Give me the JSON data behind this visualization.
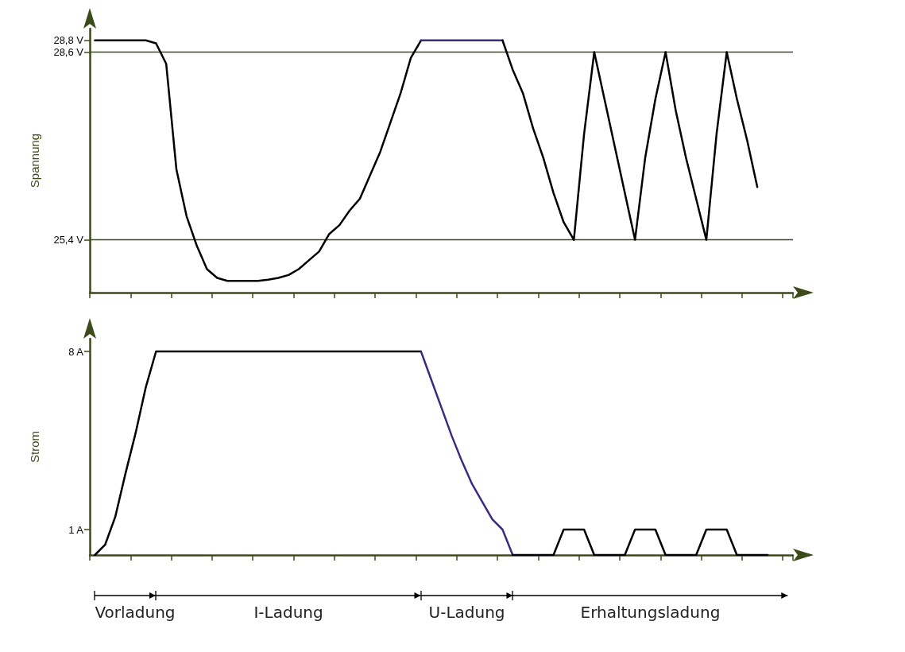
{
  "chart_data": [
    {
      "type": "line",
      "ylabel": "Spannung",
      "categories": [
        null,
        null,
        null,
        null,
        null,
        null,
        null,
        null,
        null,
        null,
        null,
        null,
        null,
        null,
        null,
        null,
        null,
        null,
        null,
        null,
        null,
        null,
        null,
        null,
        null,
        null,
        null,
        null,
        null,
        null,
        null,
        null,
        null,
        null,
        null,
        null,
        null,
        null,
        null,
        null,
        null,
        null,
        null,
        null,
        null,
        null,
        null,
        null,
        null,
        null,
        null,
        null,
        null,
        null,
        null,
        null,
        null,
        null,
        null,
        null,
        null,
        null,
        null,
        null,
        null,
        null,
        null,
        null,
        null
      ],
      "ylim": [
        24.5,
        29
      ],
      "yticks": [
        {
          "value": 25.4,
          "label": "25,4 V"
        },
        {
          "value": 28.6,
          "label": "28,6 V"
        },
        {
          "value": 28.8,
          "label": "28,8 V"
        }
      ],
      "tick_labels": "y",
      "marker": "none",
      "line_style": "solid",
      "ref_lines": [
        {
          "axis": "y",
          "value": 28.6,
          "color": "#3d4a1a"
        },
        {
          "axis": "y",
          "value": 25.4,
          "color": "#3d4a1a"
        }
      ],
      "series": [
        {
          "color": "#000000",
          "values": [
            28.8,
            28.8,
            28.8,
            28.8,
            28.8,
            28.8,
            28.75,
            28.4,
            26.6,
            25.8,
            25.3,
            24.9,
            24.75,
            24.7,
            24.7,
            24.7,
            24.7,
            24.72,
            24.75,
            24.8,
            24.9,
            25.05,
            25.2,
            25.5,
            25.65,
            25.9,
            26.1,
            26.5,
            26.9,
            27.4,
            27.9,
            28.5,
            28.8,
            null,
            null,
            null,
            null,
            null,
            null,
            null,
            null,
            null,
            null,
            null,
            null,
            null,
            null,
            null,
            null,
            null,
            null,
            null,
            null,
            null,
            null,
            null,
            null,
            null,
            null,
            null,
            null,
            null,
            null,
            null,
            null,
            null,
            null,
            null,
            null
          ]
        },
        {
          "color": "#3f2a80",
          "values": [
            null,
            null,
            null,
            null,
            null,
            null,
            null,
            null,
            null,
            null,
            null,
            null,
            null,
            null,
            null,
            null,
            null,
            null,
            null,
            null,
            null,
            null,
            null,
            null,
            null,
            null,
            null,
            null,
            null,
            null,
            null,
            null,
            28.8,
            28.8,
            28.8,
            28.8,
            28.8,
            28.8,
            28.8,
            28.8,
            28.8,
            null,
            null,
            null,
            null,
            null,
            null,
            null,
            null,
            null,
            null,
            null,
            null,
            null,
            null,
            null,
            null,
            null,
            null,
            null,
            null,
            null,
            null,
            null,
            null,
            null,
            null,
            null,
            null
          ]
        },
        {
          "color": "#000000",
          "values": [
            null,
            null,
            null,
            null,
            null,
            null,
            null,
            null,
            null,
            null,
            null,
            null,
            null,
            null,
            null,
            null,
            null,
            null,
            null,
            null,
            null,
            null,
            null,
            null,
            null,
            null,
            null,
            null,
            null,
            null,
            null,
            null,
            null,
            null,
            null,
            null,
            null,
            null,
            null,
            null,
            28.8,
            28.3,
            27.9,
            27.3,
            26.8,
            26.2,
            25.7,
            25.4,
            27.2,
            28.6,
            27.8,
            27.0,
            26.2,
            25.4,
            26.8,
            27.8,
            28.6,
            27.6,
            26.8,
            26.1,
            25.4,
            27.2,
            28.6,
            27.8,
            27.1,
            26.3,
            null,
            null,
            null
          ]
        }
      ]
    },
    {
      "type": "line",
      "ylabel": "Strom",
      "categories": [
        null,
        null,
        null,
        null,
        null,
        null,
        null,
        null,
        null,
        null,
        null,
        null,
        null,
        null,
        null,
        null,
        null,
        null,
        null,
        null,
        null,
        null,
        null,
        null,
        null,
        null,
        null,
        null,
        null,
        null,
        null,
        null,
        null,
        null,
        null,
        null,
        null,
        null,
        null,
        null,
        null,
        null,
        null,
        null,
        null,
        null,
        null,
        null,
        null,
        null,
        null,
        null,
        null,
        null,
        null,
        null,
        null,
        null,
        null,
        null,
        null,
        null,
        null,
        null,
        null,
        null,
        null,
        null,
        null
      ],
      "ylim": [
        0,
        8.5
      ],
      "yticks": [
        {
          "value": 1,
          "label": "1 A"
        },
        {
          "value": 8,
          "label": "8 A"
        }
      ],
      "tick_labels": "y",
      "marker": "none",
      "line_style": "solid",
      "annotations": [
        "Vorladung",
        "I-Ladung",
        "U-Ladung",
        "Erhaltungsladung"
      ],
      "series": [
        {
          "color": "#000000",
          "values": [
            0,
            0.4,
            1.5,
            3.2,
            4.8,
            6.6,
            8,
            8,
            8,
            8,
            8,
            8,
            8,
            8,
            8,
            8,
            8,
            8,
            8,
            8,
            8,
            8,
            8,
            8,
            8,
            8,
            8,
            8,
            8,
            8,
            8,
            8,
            8,
            null,
            null,
            null,
            null,
            null,
            null,
            null,
            null,
            null,
            null,
            null,
            null,
            null,
            null,
            null,
            null,
            null,
            null,
            null,
            null,
            null,
            null,
            null,
            null,
            null,
            null,
            null,
            null,
            null,
            null,
            null,
            null,
            null,
            null,
            null,
            null
          ]
        },
        {
          "color": "#3f2a80",
          "values": [
            null,
            null,
            null,
            null,
            null,
            null,
            null,
            null,
            null,
            null,
            null,
            null,
            null,
            null,
            null,
            null,
            null,
            null,
            null,
            null,
            null,
            null,
            null,
            null,
            null,
            null,
            null,
            null,
            null,
            null,
            null,
            null,
            8,
            6.9,
            5.8,
            4.7,
            3.7,
            2.8,
            2.1,
            1.4,
            1.0,
            0,
            null,
            null,
            null,
            null,
            null,
            null,
            null,
            null,
            null,
            null,
            null,
            null,
            null,
            null,
            null,
            null,
            null,
            null,
            null,
            null,
            null,
            null,
            null,
            null,
            null,
            null,
            null
          ]
        },
        {
          "color": "#000000",
          "values": [
            null,
            null,
            null,
            null,
            null,
            null,
            null,
            null,
            null,
            null,
            null,
            null,
            null,
            null,
            null,
            null,
            null,
            null,
            null,
            null,
            null,
            null,
            null,
            null,
            null,
            null,
            null,
            null,
            null,
            null,
            null,
            null,
            null,
            null,
            null,
            null,
            null,
            null,
            null,
            null,
            null,
            0,
            0,
            0,
            0,
            0,
            1,
            1,
            1,
            0,
            0,
            0,
            0,
            1,
            1,
            1,
            0,
            0,
            0,
            0,
            1,
            1,
            1,
            0,
            0,
            0,
            0,
            null,
            null
          ]
        }
      ]
    }
  ]
}
